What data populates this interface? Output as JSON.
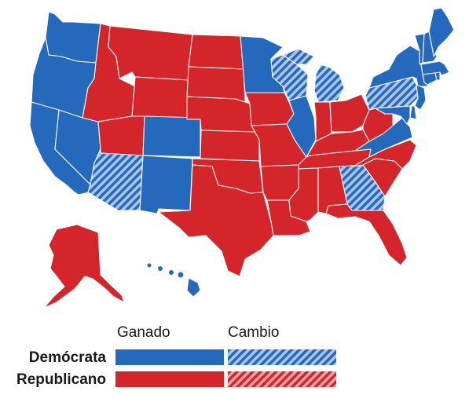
{
  "colors": {
    "democrat": "#2569bd",
    "republican": "#d4252a",
    "democrat_flip_stripe": "#a9c6ea",
    "republican_flip_stripe": "#f2a3a3"
  },
  "legend": {
    "col_won": "Ganado",
    "col_flip": "Cambio",
    "row_dem": "Demócrata",
    "row_rep": "Republicano"
  },
  "states": [
    {
      "id": "WA",
      "result": "D-won"
    },
    {
      "id": "OR",
      "result": "D-won"
    },
    {
      "id": "CA",
      "result": "D-won"
    },
    {
      "id": "NV",
      "result": "D-won"
    },
    {
      "id": "ID",
      "result": "R-won"
    },
    {
      "id": "MT",
      "result": "R-won"
    },
    {
      "id": "WY",
      "result": "R-won"
    },
    {
      "id": "UT",
      "result": "R-won"
    },
    {
      "id": "AZ",
      "result": "D-flip"
    },
    {
      "id": "CO",
      "result": "D-won"
    },
    {
      "id": "NM",
      "result": "D-won"
    },
    {
      "id": "ND",
      "result": "R-won"
    },
    {
      "id": "SD",
      "result": "R-won"
    },
    {
      "id": "NE",
      "result": "R-won"
    },
    {
      "id": "KS",
      "result": "R-won"
    },
    {
      "id": "OK",
      "result": "R-won"
    },
    {
      "id": "TX",
      "result": "R-won"
    },
    {
      "id": "MN",
      "result": "D-won"
    },
    {
      "id": "IA",
      "result": "R-won"
    },
    {
      "id": "MO",
      "result": "R-won"
    },
    {
      "id": "AR",
      "result": "R-won"
    },
    {
      "id": "LA",
      "result": "R-won"
    },
    {
      "id": "WI",
      "result": "D-flip"
    },
    {
      "id": "IL",
      "result": "D-won"
    },
    {
      "id": "MI",
      "result": "D-flip"
    },
    {
      "id": "IN",
      "result": "R-won"
    },
    {
      "id": "OH",
      "result": "R-won"
    },
    {
      "id": "KY",
      "result": "R-won"
    },
    {
      "id": "TN",
      "result": "R-won"
    },
    {
      "id": "MS",
      "result": "R-won"
    },
    {
      "id": "AL",
      "result": "R-won"
    },
    {
      "id": "GA",
      "result": "D-flip"
    },
    {
      "id": "FL",
      "result": "R-won"
    },
    {
      "id": "SC",
      "result": "R-won"
    },
    {
      "id": "NC",
      "result": "R-won"
    },
    {
      "id": "VA",
      "result": "D-won"
    },
    {
      "id": "WV",
      "result": "R-won"
    },
    {
      "id": "PA",
      "result": "D-flip"
    },
    {
      "id": "NY",
      "result": "D-won"
    },
    {
      "id": "VT",
      "result": "D-won"
    },
    {
      "id": "NH",
      "result": "D-won"
    },
    {
      "id": "ME",
      "result": "D-won"
    },
    {
      "id": "MA",
      "result": "D-won"
    },
    {
      "id": "CT",
      "result": "D-won"
    },
    {
      "id": "RI",
      "result": "D-won"
    },
    {
      "id": "NJ",
      "result": "D-won"
    },
    {
      "id": "DE",
      "result": "D-won"
    },
    {
      "id": "MD",
      "result": "D-won"
    },
    {
      "id": "AK",
      "result": "R-won"
    },
    {
      "id": "HI",
      "result": "D-won"
    }
  ]
}
